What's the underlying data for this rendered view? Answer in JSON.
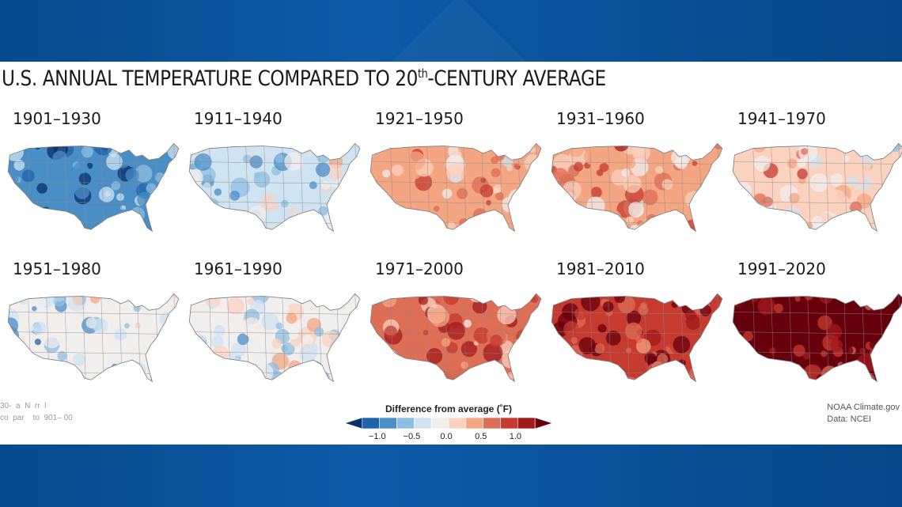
{
  "title_main": "U.S. ANNUAL TEMPERATURE COMPARED TO 20",
  "title_sup": "th",
  "title_tail": "-CENTURY AVERAGE",
  "maps": [
    {
      "period": "1901–1930",
      "anomaly": -0.75
    },
    {
      "period": "1911–1940",
      "anomaly": -0.3
    },
    {
      "period": "1921–1950",
      "anomaly": 0.25
    },
    {
      "period": "1931–1960",
      "anomaly": 0.3
    },
    {
      "period": "1941–1970",
      "anomaly": 0.05
    },
    {
      "period": "1951–1980",
      "anomaly": -0.2
    },
    {
      "period": "1961–1990",
      "anomaly": -0.15
    },
    {
      "period": "1971–2000",
      "anomaly": 0.5
    },
    {
      "period": "1981–2010",
      "anomaly": 0.9
    },
    {
      "period": "1991–2020",
      "anomaly": 1.2
    }
  ],
  "legend": {
    "title": "Difference from average (˚F)",
    "ticks": [
      "−1.0",
      "−0.5",
      "0.0",
      "0.5",
      "1.0"
    ],
    "colors": [
      "#08306b",
      "#1f63a8",
      "#4a8ec6",
      "#8fbfe0",
      "#cfe3f1",
      "#f1eeee",
      "#fbd2bf",
      "#f4a582",
      "#de6e55",
      "#c63a2f",
      "#a11a1c",
      "#67000d"
    ]
  },
  "note_left": "30-  a  N  rr  l\nco  par    to  901– 00",
  "source_line1": "NOAA Climate.gov",
  "source_line2": "Data: NCEI"
}
